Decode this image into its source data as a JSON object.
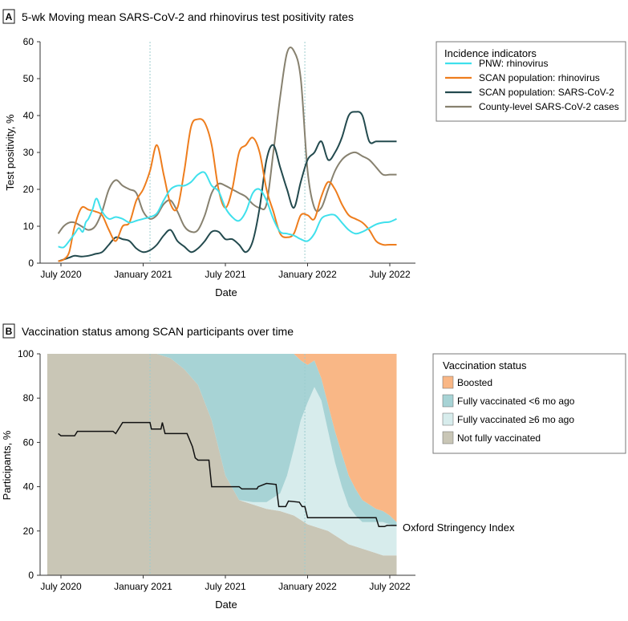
{
  "colors": {
    "pnw_rhino": "#3fe0ec",
    "scan_rhino": "#ee7d1d",
    "scan_cov": "#234a4e",
    "county": "#87816f",
    "boosted": "#f9b786",
    "fully_lt6": "#a7d3d5",
    "fully_ge6": "#d7ecec",
    "not_fully": "#c9c6b6",
    "stringency": "#111111",
    "vline": "#9ccccf"
  },
  "chart_data": [
    {
      "id": "A",
      "panel_label": "A",
      "type": "line",
      "title": "5-wk Moving mean SARS-CoV-2 and rhinovirus test positivity rates",
      "xlabel": "Date",
      "ylabel": "Test positivity, %",
      "ylim": [
        0,
        60
      ],
      "yticks": [
        0,
        10,
        20,
        30,
        40,
        50,
        60
      ],
      "xlim": [
        0,
        25
      ],
      "xticks": [
        {
          "x": 1,
          "label": "July 2020"
        },
        {
          "x": 7,
          "label": "January 2021"
        },
        {
          "x": 13,
          "label": "July 2021"
        },
        {
          "x": 19,
          "label": "January 2022"
        },
        {
          "x": 25,
          "label": "July 2022"
        }
      ],
      "vlines": [
        7.5,
        18.8
      ],
      "legend_title": "Incidence indicators",
      "legend_position": "top-right",
      "series": [
        {
          "name": "PNW: rhinovirus",
          "color_key": "pnw_rhino",
          "x": [
            0.8,
            1.2,
            1.6,
            2,
            2.3,
            2.6,
            2.8,
            3,
            3.3,
            3.6,
            4,
            4.5,
            5,
            5.5,
            6,
            6.5,
            7,
            7.5,
            8,
            8.5,
            9,
            9.5,
            10,
            10.5,
            11,
            11.5,
            12,
            12.5,
            13,
            13.5,
            14,
            14.5,
            15,
            15.5,
            16,
            16.5,
            17,
            17.5,
            18,
            18.5,
            19,
            19.5,
            20,
            20.5,
            21,
            21.5,
            22,
            22.5,
            23,
            23.5,
            24,
            24.5,
            25,
            25.5
          ],
          "values": [
            4.5,
            4.3,
            6,
            8,
            9.5,
            8.5,
            11,
            12,
            14.5,
            17.5,
            14,
            12,
            12.5,
            12,
            11,
            11.5,
            12,
            12.5,
            13.5,
            17,
            20,
            21,
            21,
            22,
            24,
            24.5,
            21,
            19.5,
            15,
            12.5,
            11.5,
            14,
            19,
            20,
            17,
            12,
            8.5,
            8,
            7.5,
            6.5,
            6,
            8,
            12,
            13,
            13,
            11,
            9,
            8,
            8.5,
            9.5,
            10.5,
            11,
            11.2,
            12
          ]
        },
        {
          "name": "SCAN population: rhinovirus",
          "color_key": "scan_rhino",
          "x": [
            0.8,
            1.2,
            1.6,
            2,
            2.5,
            3,
            3.5,
            4,
            4.5,
            5,
            5.5,
            6,
            6.5,
            7,
            7.5,
            8,
            8.5,
            9,
            9.5,
            10,
            10.5,
            11,
            11.5,
            12,
            12.5,
            13,
            13.5,
            14,
            14.5,
            15,
            15.5,
            16,
            16.5,
            17,
            17.5,
            18,
            18.5,
            19,
            19.5,
            20,
            20.5,
            21,
            21.5,
            22,
            22.5,
            23,
            23.5,
            24,
            24.5,
            25,
            25.5
          ],
          "values": [
            0.5,
            1,
            3,
            10,
            15,
            14.5,
            14,
            13,
            9,
            6,
            10,
            11,
            17,
            20,
            25,
            32,
            24,
            16,
            15,
            25,
            37,
            39,
            38,
            32,
            20,
            15,
            20,
            30,
            32,
            34,
            30,
            20,
            14,
            8,
            7,
            8,
            13,
            13,
            12,
            18,
            22,
            20,
            16,
            13,
            12,
            11,
            9,
            6,
            5,
            5,
            5
          ]
        },
        {
          "name": "SCAN population: SARS-CoV-2",
          "color_key": "scan_cov",
          "x": [
            0.8,
            1.2,
            1.6,
            2,
            2.5,
            3,
            3.5,
            4,
            4.5,
            5,
            5.5,
            6,
            6.5,
            7,
            7.5,
            8,
            8.5,
            9,
            9.5,
            10,
            10.5,
            11,
            11.5,
            12,
            12.5,
            13,
            13.5,
            14,
            14.5,
            15,
            15.5,
            16,
            16.5,
            17,
            17.5,
            18,
            18.5,
            19,
            19.5,
            20,
            20.5,
            21,
            21.5,
            22,
            22.5,
            23,
            23.5,
            24,
            24.5,
            25,
            25.5
          ],
          "values": [
            0.5,
            1,
            1.5,
            2,
            1.8,
            2,
            2.5,
            3,
            5,
            7,
            6.5,
            6,
            4,
            3,
            3.5,
            5,
            7.5,
            9,
            6,
            4.5,
            3,
            4,
            6,
            8.5,
            8.5,
            6.5,
            6.5,
            5,
            3,
            6,
            15,
            28,
            32,
            26,
            20,
            15,
            22,
            28,
            30,
            33,
            28,
            30,
            34,
            40,
            41,
            40,
            33,
            33,
            33,
            33,
            33
          ]
        },
        {
          "name": "County-level SARS-CoV-2 cases",
          "color_key": "county",
          "x": [
            0.8,
            1.2,
            1.6,
            2,
            2.5,
            3,
            3.5,
            4,
            4.5,
            5,
            5.5,
            6,
            6.5,
            7,
            7.5,
            8,
            8.5,
            9,
            9.5,
            10,
            10.5,
            11,
            11.5,
            12,
            12.5,
            13,
            13.5,
            14,
            14.5,
            15,
            15.5,
            16,
            16.5,
            17,
            17.5,
            18,
            18.5,
            19,
            19.5,
            20,
            20.5,
            21,
            21.5,
            22,
            22.5,
            23,
            23.5,
            24,
            24.5,
            25,
            25.5
          ],
          "values": [
            8,
            10,
            11,
            11,
            10,
            9,
            10,
            14,
            20,
            22.5,
            21,
            20,
            19,
            14,
            12,
            13,
            16,
            17,
            14,
            10,
            8.5,
            9,
            13,
            19,
            21.5,
            21,
            20,
            19,
            18,
            16,
            15,
            16,
            30,
            45,
            57,
            57.5,
            50,
            25,
            15,
            15,
            20,
            25,
            28,
            29.5,
            30,
            29,
            28,
            26,
            24,
            24,
            24
          ]
        }
      ]
    },
    {
      "id": "B",
      "panel_label": "B",
      "type": "area",
      "title": "Vaccination status among SCAN participants over time",
      "xlabel": "Date",
      "ylabel": "Participants, %",
      "ylim": [
        0,
        100
      ],
      "yticks": [
        0,
        20,
        40,
        60,
        80,
        100
      ],
      "xlim": [
        0,
        25
      ],
      "xticks": [
        {
          "x": 1,
          "label": "July 2020"
        },
        {
          "x": 7,
          "label": "January 2021"
        },
        {
          "x": 13,
          "label": "July 2021"
        },
        {
          "x": 19,
          "label": "January 2022"
        },
        {
          "x": 25,
          "label": "July 2022"
        }
      ],
      "vlines": [
        7.5,
        18.8
      ],
      "legend_title": "Vaccination status",
      "legend_position": "top-right",
      "x": [
        0,
        7.5,
        8,
        9,
        10,
        11,
        12,
        13,
        14,
        15,
        16,
        17,
        17.5,
        18,
        18.5,
        19,
        19.5,
        20,
        20.5,
        21,
        21.5,
        22,
        22.5,
        23,
        23.5,
        24,
        24.5,
        25,
        25.5
      ],
      "series": [
        {
          "name": "Not fully vaccinated",
          "color_key": "not_fully",
          "values": [
            100,
            100,
            100,
            98,
            93,
            86,
            70,
            45,
            34,
            32,
            30,
            29,
            28,
            27,
            25,
            23,
            22,
            21,
            20,
            18,
            16,
            14,
            13,
            12,
            11,
            10,
            9,
            9,
            9
          ]
        },
        {
          "name": "Fully vaccinated ≥6 mo ago",
          "color_key": "fully_ge6",
          "values": [
            0,
            0,
            0,
            0,
            0,
            0,
            0,
            0,
            0,
            1,
            3,
            8,
            17,
            30,
            45,
            55,
            63,
            58,
            45,
            33,
            24,
            17,
            14,
            12,
            13,
            14,
            15,
            14,
            13
          ]
        },
        {
          "name": "Fully vaccinated <6 mo ago",
          "color_key": "fully_lt6",
          "values": [
            0,
            0,
            0,
            2,
            7,
            14,
            30,
            55,
            66,
            67,
            67,
            63,
            55,
            43,
            27,
            17,
            12,
            10,
            12,
            14,
            15,
            14,
            12,
            10,
            8,
            6,
            5,
            4,
            2
          ]
        },
        {
          "name": "Boosted",
          "color_key": "boosted",
          "values": [
            0,
            0,
            0,
            0,
            0,
            0,
            0,
            0,
            0,
            0,
            0,
            0,
            0,
            0,
            3,
            5,
            3,
            11,
            23,
            35,
            45,
            55,
            61,
            66,
            68,
            70,
            71,
            73,
            76
          ]
        }
      ],
      "legend_order": [
        "Boosted",
        "Fully vaccinated <6 mo ago",
        "Fully vaccinated ≥6 mo ago",
        "Not fully vaccinated"
      ],
      "stringency": {
        "name": "Oxford Stringency Index",
        "color_key": "stringency",
        "steps": [
          [
            0.8,
            64
          ],
          [
            1,
            63
          ],
          [
            2,
            63
          ],
          [
            2.2,
            65
          ],
          [
            4.8,
            65
          ],
          [
            5,
            64
          ],
          [
            5.5,
            69
          ],
          [
            7.5,
            69
          ],
          [
            7.6,
            66
          ],
          [
            8.3,
            66
          ],
          [
            8.4,
            69
          ],
          [
            8.6,
            64
          ],
          [
            10.2,
            64
          ],
          [
            10.6,
            58
          ],
          [
            10.8,
            53
          ],
          [
            11.0,
            52
          ],
          [
            11.8,
            52
          ],
          [
            12.0,
            40
          ],
          [
            14,
            40
          ],
          [
            14.2,
            39
          ],
          [
            15.3,
            39
          ],
          [
            15.4,
            40
          ],
          [
            16,
            41.5
          ],
          [
            16.7,
            41
          ],
          [
            16.9,
            31
          ],
          [
            17.4,
            31
          ],
          [
            17.6,
            33.5
          ],
          [
            18.4,
            33
          ],
          [
            18.6,
            31
          ],
          [
            18.8,
            31
          ],
          [
            19,
            26
          ],
          [
            21,
            26
          ],
          [
            23.2,
            26
          ],
          [
            24,
            26
          ],
          [
            24.2,
            22
          ],
          [
            24.6,
            22
          ],
          [
            24.8,
            22.5
          ],
          [
            25.5,
            22.5
          ]
        ]
      }
    }
  ]
}
